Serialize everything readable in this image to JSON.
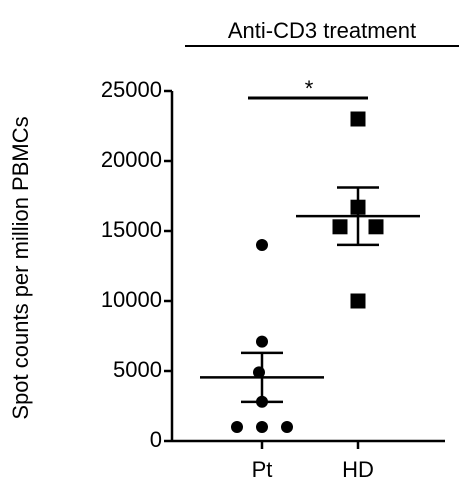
{
  "chart_data": {
    "type": "dot",
    "title": "Anti-CD3 treatment",
    "y_label": "Spot counts per million PBMCs",
    "categories": [
      "Pt",
      "HD"
    ],
    "points": [
      [
        14000,
        7100,
        4900,
        2800,
        1000,
        1000,
        1000
      ],
      [
        23000,
        16700,
        15300,
        15300,
        10000
      ]
    ],
    "markers": [
      "circle",
      "square"
    ],
    "mean": [
      4543,
      16060
    ],
    "error": [
      1750,
      2050
    ],
    "color": "#000000",
    "annotation": "*",
    "ylim": [
      0,
      25000
    ],
    "yticks": [
      0,
      5000,
      10000,
      15000,
      20000,
      25000
    ]
  }
}
